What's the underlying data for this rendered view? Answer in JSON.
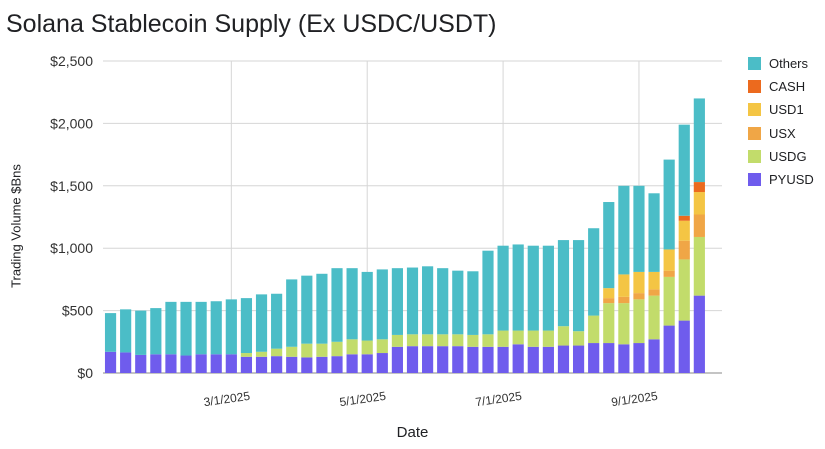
{
  "chart_data": {
    "type": "bar",
    "stacked": true,
    "title": "Solana Stablecoin Supply (Ex USDC/USDT)",
    "xlabel": "Date",
    "ylabel": "Trading Volume $Bns",
    "ylim": [
      0,
      2500
    ],
    "yticks": [
      "$0",
      "$500",
      "$1,000",
      "$1,500",
      "$2,000",
      "$2,500"
    ],
    "ytick_values": [
      0,
      500,
      1000,
      1500,
      2000,
      2500
    ],
    "xticks": [
      {
        "label": "3/1/2025",
        "index": 8
      },
      {
        "label": "5/1/2025",
        "index": 17
      },
      {
        "label": "7/1/2025",
        "index": 26
      },
      {
        "label": "9/1/2025",
        "index": 35
      }
    ],
    "grid": true,
    "legend_position": "right",
    "num_bars": 41,
    "series": [
      {
        "name": "PYUSD",
        "color": "#6f5ced",
        "values": [
          170,
          165,
          145,
          150,
          150,
          140,
          150,
          150,
          150,
          130,
          130,
          135,
          130,
          125,
          130,
          135,
          150,
          150,
          160,
          210,
          215,
          215,
          215,
          215,
          210,
          210,
          210,
          230,
          210,
          210,
          220,
          220,
          240,
          240,
          230,
          240,
          270,
          380,
          420,
          620,
          0
        ]
      },
      {
        "name": "USDG",
        "color": "#c2dc6b",
        "values": [
          0,
          0,
          0,
          0,
          0,
          0,
          0,
          0,
          0,
          30,
          40,
          60,
          80,
          110,
          105,
          115,
          120,
          110,
          110,
          95,
          95,
          95,
          95,
          95,
          95,
          100,
          130,
          110,
          130,
          130,
          155,
          115,
          220,
          320,
          330,
          350,
          350,
          390,
          490,
          470,
          0
        ]
      },
      {
        "name": "USX",
        "color": "#f0a646",
        "values": [
          0,
          0,
          0,
          0,
          0,
          0,
          0,
          0,
          0,
          0,
          0,
          0,
          0,
          0,
          0,
          0,
          0,
          0,
          0,
          0,
          0,
          0,
          0,
          0,
          0,
          0,
          0,
          0,
          0,
          0,
          0,
          0,
          0,
          40,
          50,
          50,
          50,
          50,
          150,
          180,
          0
        ]
      },
      {
        "name": "USD1",
        "color": "#f4c544",
        "values": [
          0,
          0,
          0,
          0,
          0,
          0,
          0,
          0,
          0,
          0,
          0,
          0,
          0,
          0,
          0,
          0,
          0,
          0,
          0,
          0,
          0,
          0,
          0,
          0,
          0,
          0,
          0,
          0,
          0,
          0,
          0,
          0,
          0,
          80,
          180,
          170,
          140,
          170,
          160,
          180,
          0
        ]
      },
      {
        "name": "CASH",
        "color": "#ec6a1e",
        "values": [
          0,
          0,
          0,
          0,
          0,
          0,
          0,
          0,
          0,
          0,
          0,
          0,
          0,
          0,
          0,
          0,
          0,
          0,
          0,
          0,
          0,
          0,
          0,
          0,
          0,
          0,
          0,
          0,
          0,
          0,
          0,
          0,
          0,
          0,
          0,
          0,
          0,
          0,
          40,
          80,
          0
        ]
      },
      {
        "name": "Others",
        "color": "#4bbdc7",
        "values": [
          310,
          345,
          355,
          370,
          420,
          430,
          420,
          425,
          440,
          440,
          460,
          440,
          540,
          545,
          560,
          590,
          570,
          550,
          560,
          535,
          535,
          545,
          530,
          510,
          510,
          670,
          680,
          690,
          680,
          680,
          690,
          730,
          700,
          690,
          710,
          690,
          630,
          720,
          730,
          670,
          0
        ]
      }
    ]
  }
}
